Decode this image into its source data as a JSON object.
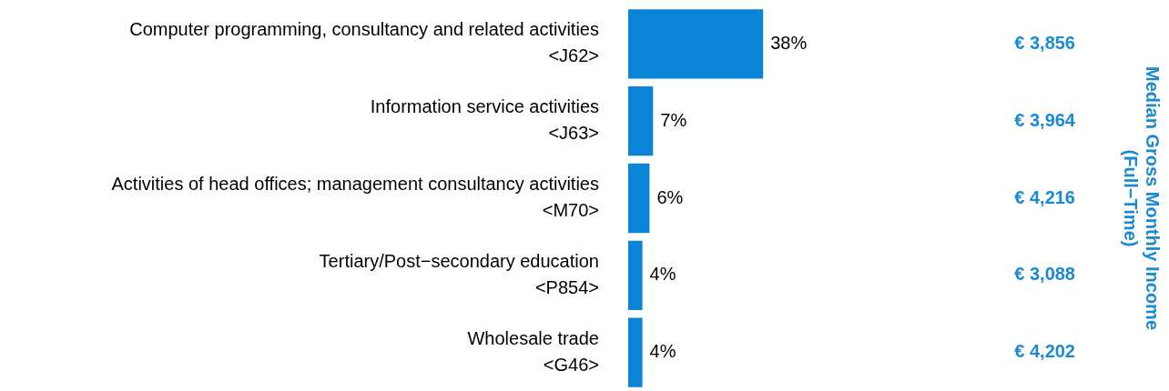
{
  "chart_data": {
    "type": "bar",
    "orientation": "horizontal",
    "categories": [
      "Computer programming, consultancy and related activities\n<J62>",
      "Information service activities\n<J63>",
      "Activities of head offices; management consultancy activities\n<M70>",
      "Tertiary/Post−secondary education\n<P854>",
      "Wholesale trade\n<G46>"
    ],
    "values": [
      38,
      7,
      6,
      4,
      4
    ],
    "color": "#0a84d6",
    "data_labels": true,
    "value_labels": [
      "38%",
      "7%",
      "6%",
      "4%",
      "4%"
    ],
    "y2_categories": [
      "€ 3,856",
      "€ 3,964",
      "€ 4,216",
      "€ 3,088",
      "€ 4,202"
    ],
    "annotations": [
      "Median Gross Monthly Income\n(Full−Time)"
    ],
    "grid": false,
    "legend": false
  }
}
